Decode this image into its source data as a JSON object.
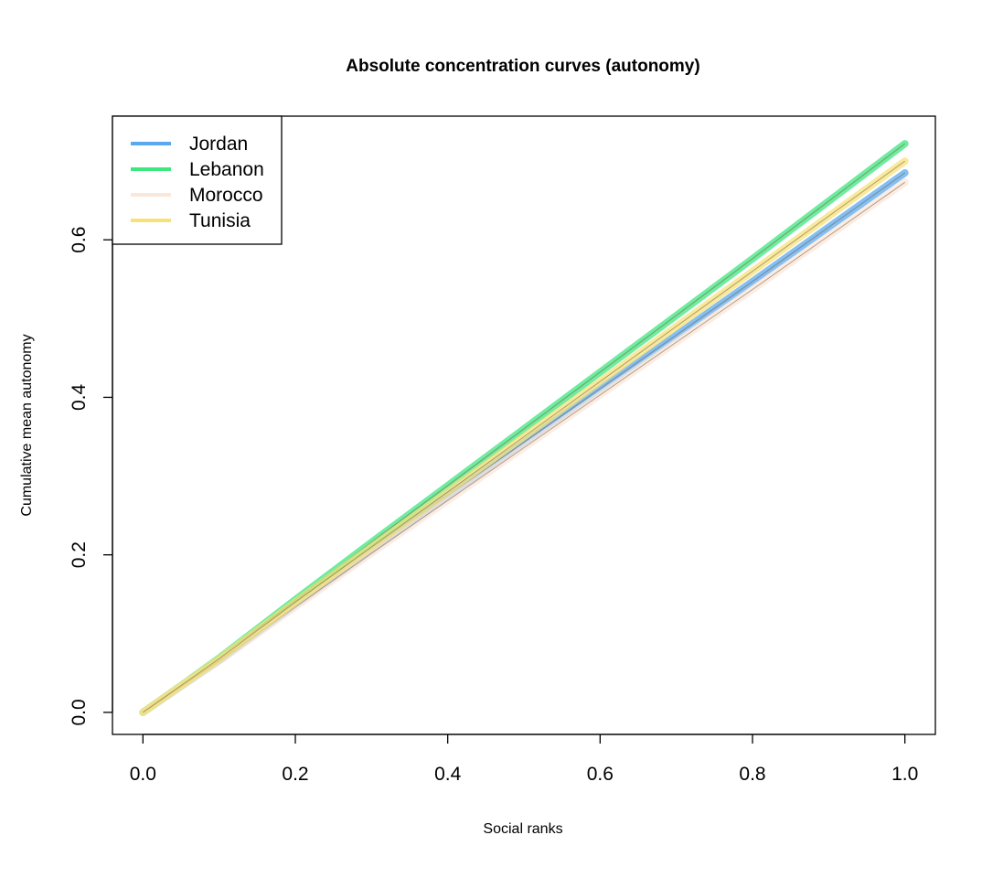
{
  "chart_data": {
    "type": "line",
    "title": "Absolute concentration curves (autonomy)",
    "xlabel": "Social ranks",
    "ylabel": "Cumulative mean autonomy",
    "xlim": [
      -0.04,
      1.04
    ],
    "ylim": [
      -0.028,
      0.757
    ],
    "xticks": [
      0.0,
      0.2,
      0.4,
      0.6,
      0.8,
      1.0
    ],
    "xtick_labels": [
      "0.0",
      "0.2",
      "0.4",
      "0.6",
      "0.8",
      "1.0"
    ],
    "yticks": [
      0.0,
      0.2,
      0.4,
      0.6
    ],
    "ytick_labels": [
      "0.0",
      "0.2",
      "0.4",
      "0.6"
    ],
    "grid": false,
    "legend_position": "top-left",
    "x": [
      0.0,
      0.05,
      0.1,
      0.2,
      0.3,
      0.4,
      0.5,
      0.6,
      0.7,
      0.8,
      0.9,
      1.0
    ],
    "series": [
      {
        "name": "Jordan",
        "color": "#5aa9f0",
        "values": [
          0.0,
          0.033,
          0.066,
          0.137,
          0.206,
          0.275,
          0.343,
          0.411,
          0.479,
          0.547,
          0.616,
          0.685
        ]
      },
      {
        "name": "Lebanon",
        "color": "#3ee67f",
        "values": [
          0.0,
          0.034,
          0.069,
          0.143,
          0.216,
          0.288,
          0.36,
          0.432,
          0.504,
          0.576,
          0.649,
          0.722
        ]
      },
      {
        "name": "Morocco",
        "color": "#f9e7d9",
        "values": [
          0.0,
          0.033,
          0.065,
          0.134,
          0.202,
          0.269,
          0.336,
          0.403,
          0.47,
          0.537,
          0.605,
          0.673
        ]
      },
      {
        "name": "Tunisia",
        "color": "#f6e27a",
        "values": [
          0.0,
          0.034,
          0.068,
          0.14,
          0.21,
          0.28,
          0.35,
          0.42,
          0.49,
          0.56,
          0.63,
          0.7
        ]
      }
    ]
  }
}
